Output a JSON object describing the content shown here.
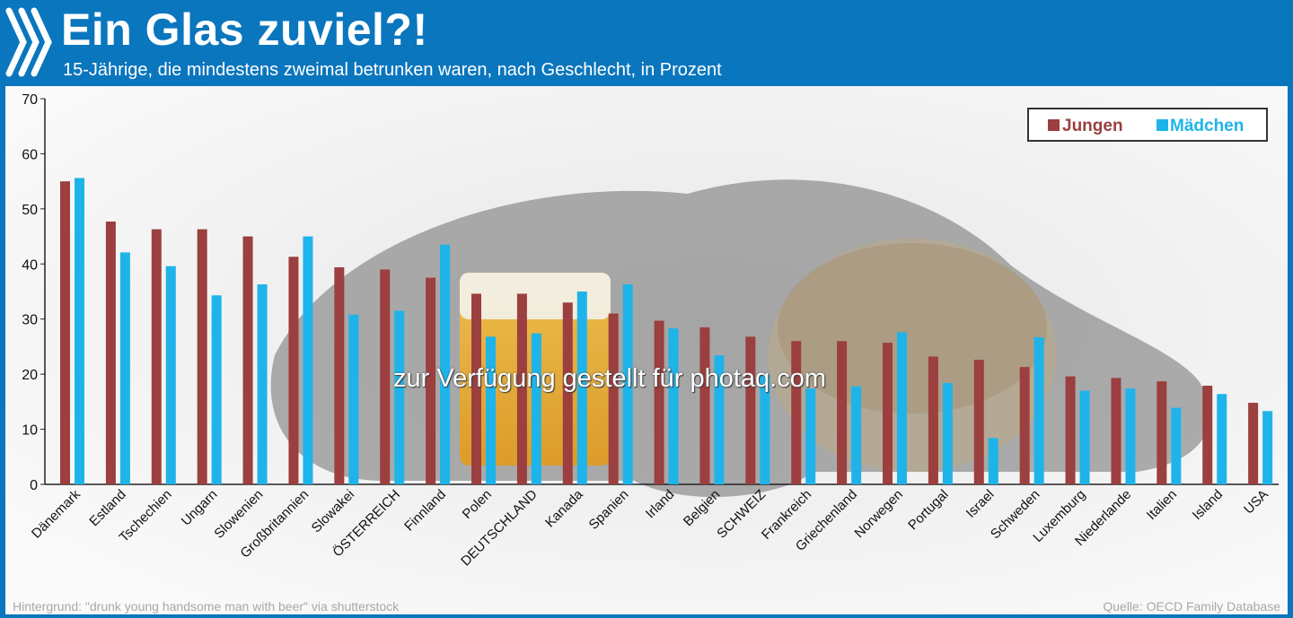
{
  "header": {
    "title": "Ein Glas zuviel?!",
    "subtitle": "15-Jährige, die mindestens zweimal betrunken waren, nach Geschlecht, in Prozent"
  },
  "footer": {
    "credit": "Hintergrund: \"drunk young handsome man with beer\" via shutterstock",
    "source": "Quelle: OECD Family Database"
  },
  "watermark": "zur Verfügung gestellt für photaq.com",
  "colors": {
    "header_bg": "#0a76bd",
    "jungen": "#9b3f3f",
    "maedchen": "#1eb4ea"
  },
  "chart_data": {
    "type": "bar",
    "categories": [
      "Dänemark",
      "Estland",
      "Tschechien",
      "Ungarn",
      "Slowenien",
      "Großbritannien",
      "Slowakei",
      "ÖSTERREICH",
      "Finnland",
      "Polen",
      "DEUTSCHLAND",
      "Kanada",
      "Spanien",
      "Irland",
      "Belgien",
      "SCHWEIZ",
      "Frankreich",
      "Griechenland",
      "Norwegen",
      "Portugal",
      "Israel",
      "Schweden",
      "Luxemburg",
      "Niederlande",
      "Italien",
      "Island",
      "USA"
    ],
    "series": [
      {
        "name": "Jungen",
        "values": [
          55,
          47.7,
          46.3,
          46.3,
          45,
          41.3,
          39.4,
          39,
          37.5,
          34.6,
          34.6,
          33,
          31,
          29.7,
          28.5,
          26.8,
          26,
          26,
          25.7,
          23.2,
          22.6,
          21.3,
          19.6,
          19.3,
          18.7,
          17.9,
          14.8
        ]
      },
      {
        "name": "Mädchen",
        "values": [
          55.6,
          42.1,
          39.6,
          34.3,
          36.3,
          45,
          30.8,
          31.5,
          43.5,
          26.8,
          27.4,
          35,
          36.3,
          28.3,
          23.4,
          19.8,
          17.4,
          17.8,
          27.6,
          18.4,
          8.4,
          26.7,
          17,
          17.4,
          13.9,
          16.4,
          13.3
        ]
      }
    ],
    "yticks": [
      0,
      10,
      20,
      30,
      40,
      50,
      60,
      70
    ],
    "ylim": [
      0,
      70
    ],
    "legend_position": "top-right",
    "grid": false
  }
}
